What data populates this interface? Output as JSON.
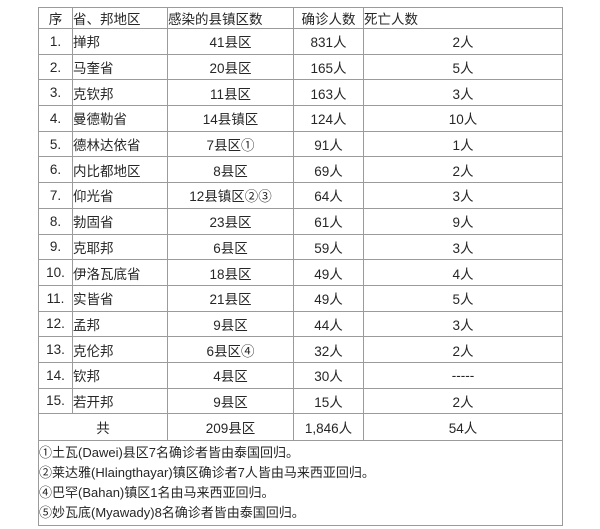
{
  "table": {
    "headers": {
      "no": "序",
      "region": "省、邦地区",
      "townships": "感染的县镇区数",
      "confirmed": "确诊人数",
      "deaths": "死亡人数"
    },
    "rows": [
      {
        "no": "1.",
        "region": "掸邦",
        "townships": "41县区",
        "confirmed": "831人",
        "deaths": "2人"
      },
      {
        "no": "2.",
        "region": "马奎省",
        "townships": "20县区",
        "confirmed": "165人",
        "deaths": "5人"
      },
      {
        "no": "3.",
        "region": "克钦邦",
        "townships": "11县区",
        "confirmed": "163人",
        "deaths": "3人"
      },
      {
        "no": "4.",
        "region": "曼德勒省",
        "townships": "14县镇区",
        "confirmed": "124人",
        "deaths": "10人"
      },
      {
        "no": "5.",
        "region": "德林达依省",
        "townships": "7县区①",
        "confirmed": "91人",
        "deaths": "1人"
      },
      {
        "no": "6.",
        "region": "内比都地区",
        "townships": "8县区",
        "confirmed": "69人",
        "deaths": "2人"
      },
      {
        "no": "7.",
        "region": "仰光省",
        "townships": "12县镇区②③",
        "confirmed": "64人",
        "deaths": "3人"
      },
      {
        "no": "8.",
        "region": "勃固省",
        "townships": "23县区",
        "confirmed": "61人",
        "deaths": "9人"
      },
      {
        "no": "9.",
        "region": "克耶邦",
        "townships": "6县区",
        "confirmed": "59人",
        "deaths": "3人"
      },
      {
        "no": "10.",
        "region": "伊洛瓦底省",
        "townships": "18县区",
        "confirmed": "49人",
        "deaths": "4人"
      },
      {
        "no": "11.",
        "region": "实皆省",
        "townships": "21县区",
        "confirmed": "49人",
        "deaths": "5人"
      },
      {
        "no": "12.",
        "region": "孟邦",
        "townships": "9县区",
        "confirmed": "44人",
        "deaths": "3人"
      },
      {
        "no": "13.",
        "region": "克伦邦",
        "townships": "6县区④",
        "confirmed": "32人",
        "deaths": "2人"
      },
      {
        "no": "14.",
        "region": "钦邦",
        "townships": "4县区",
        "confirmed": "30人",
        "deaths": "-----"
      },
      {
        "no": "15.",
        "region": "若开邦",
        "townships": "9县区",
        "confirmed": "15人",
        "deaths": "2人"
      }
    ],
    "total": {
      "label": "共",
      "townships": "209县区",
      "confirmed": "1,846人",
      "deaths": "54人"
    }
  },
  "footnotes": [
    "①土瓦(Dawei)县区7名确诊者皆由泰国回归。",
    "②莱达雅(Hlaingthayar)镇区确诊者7人皆由马来西亚回归。",
    "④巴罕(Bahan)镇区1名由马来西亚回归。",
    "⑤妙瓦底(Myawady)8名确诊者皆由泰国回归。"
  ],
  "colors": {
    "border": "#9b9b9b",
    "text": "#262626",
    "background": "#ffffff"
  }
}
